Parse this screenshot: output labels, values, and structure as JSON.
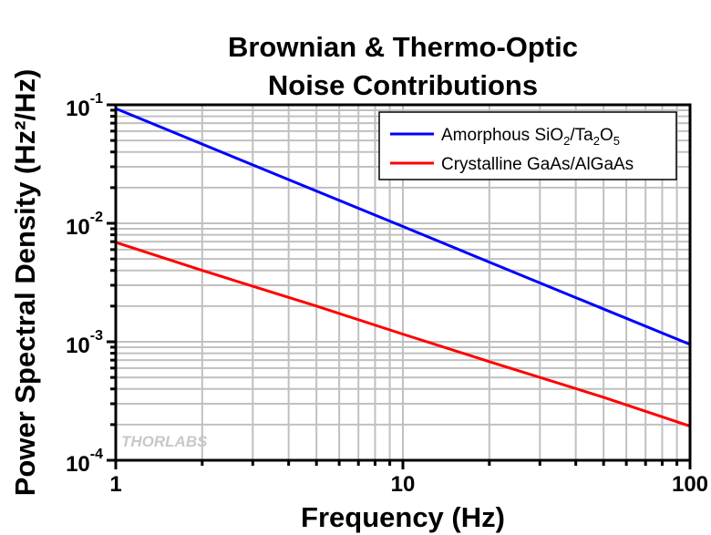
{
  "chart_data": {
    "type": "line",
    "title_lines": [
      "Brownian & Thermo-Optic",
      "Noise Contributions"
    ],
    "xlabel": "Frequency (Hz)",
    "ylabel": "Power Spectral Density (Hz²/Hz)",
    "xscale": "log",
    "yscale": "log",
    "xlim": [
      1,
      100
    ],
    "ylim": [
      0.0001,
      0.1
    ],
    "x_ticks": [
      {
        "value": 1,
        "label": "1"
      },
      {
        "value": 10,
        "label": "10"
      },
      {
        "value": 100,
        "label": "100"
      }
    ],
    "y_ticks": [
      {
        "value": 0.1,
        "base": "10",
        "exp": "-1"
      },
      {
        "value": 0.01,
        "base": "10",
        "exp": "-2"
      },
      {
        "value": 0.001,
        "base": "10",
        "exp": "-3"
      },
      {
        "value": 0.0001,
        "base": "10",
        "exp": "-4"
      }
    ],
    "grid": true,
    "legend_position": "top-right",
    "series": [
      {
        "name": "Amorphous SiO2/Ta2O5",
        "legend_parts": [
          "Amorphous SiO",
          "2",
          "/Ta",
          "2",
          "O",
          "5"
        ],
        "color": "#0000ff",
        "x": [
          1,
          2,
          5,
          10,
          20,
          50,
          100
        ],
        "y": [
          0.093,
          0.0466,
          0.0187,
          0.0094,
          0.0047,
          0.00189,
          0.00095
        ]
      },
      {
        "name": "Crystalline GaAs/AlGaAs",
        "legend_parts": [
          "Crystalline GaAs/AlGaAs"
        ],
        "color": "#ff0000",
        "x": [
          1,
          2,
          5,
          10,
          20,
          50,
          100
        ],
        "y": [
          0.0069,
          0.004,
          0.002,
          0.00116,
          0.00068,
          0.00034,
          0.000194
        ]
      }
    ],
    "watermark": "THORLABS"
  }
}
